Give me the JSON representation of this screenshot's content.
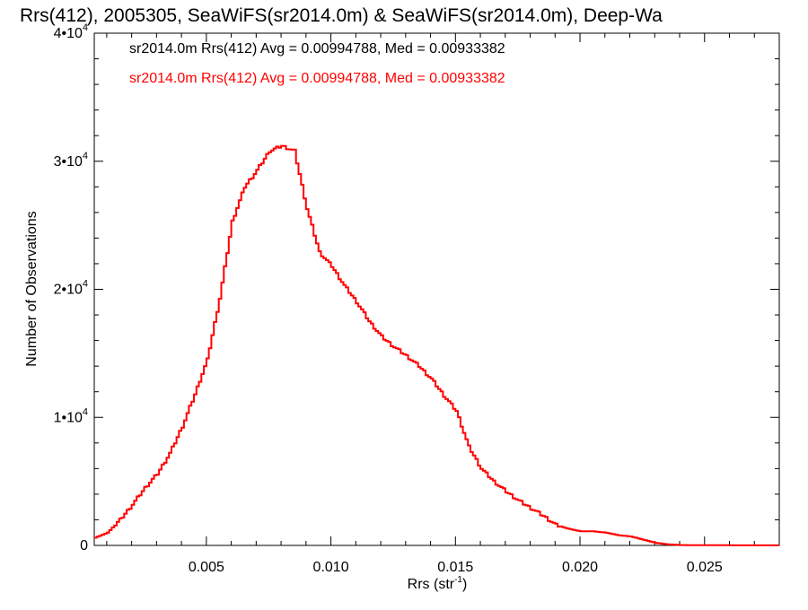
{
  "chart_data": {
    "type": "line",
    "title": "Rrs(412), 2005305, SeaWiFS(sr2014.0m) & SeaWiFS(sr2014.0m), Deep-Wa",
    "xlabel": "Rrs (str",
    "xlabel_sup": "-1",
    "xlabel_close": ")",
    "ylabel": "Number of Observations",
    "xlim": [
      0.0005,
      0.028
    ],
    "ylim": [
      0,
      40000
    ],
    "x_ticks": [
      {
        "value": 0.005,
        "label": "0.005"
      },
      {
        "value": 0.01,
        "label": "0.010"
      },
      {
        "value": 0.015,
        "label": "0.015"
      },
      {
        "value": 0.02,
        "label": "0.020"
      },
      {
        "value": 0.025,
        "label": "0.025"
      }
    ],
    "y_ticks": [
      {
        "value": 0,
        "label": "0",
        "exp": ""
      },
      {
        "value": 10000,
        "label": "1•10",
        "exp": "4"
      },
      {
        "value": 20000,
        "label": "2•10",
        "exp": "4"
      },
      {
        "value": 30000,
        "label": "3•10",
        "exp": "4"
      },
      {
        "value": 40000,
        "label": "4•10",
        "exp": "4"
      }
    ],
    "annotations": [
      {
        "text": "sr2014.0m Rrs(412) Avg = 0.00994788, Med = 0.00933382",
        "color": "#000000"
      },
      {
        "text": "sr2014.0m Rrs(412) Avg = 0.00994788, Med = 0.00933382",
        "color": "#ff0000"
      }
    ],
    "series": [
      {
        "color": "#ff0000",
        "step": true,
        "x": [
          0.0005,
          0.001,
          0.0015,
          0.002,
          0.0025,
          0.003,
          0.0035,
          0.004,
          0.0045,
          0.005,
          0.0055,
          0.006,
          0.0065,
          0.007,
          0.0075,
          0.008,
          0.0085,
          0.009,
          0.0095,
          0.01,
          0.0105,
          0.011,
          0.0115,
          0.012,
          0.0125,
          0.013,
          0.0135,
          0.014,
          0.0145,
          0.015,
          0.0155,
          0.016,
          0.0165,
          0.017,
          0.0175,
          0.018,
          0.0185,
          0.019,
          0.0195,
          0.02,
          0.0205,
          0.021,
          0.0215,
          0.022,
          0.0225,
          0.023,
          0.0235,
          0.024,
          0.0245,
          0.025,
          0.026,
          0.027,
          0.028
        ],
        "y": [
          600,
          1000,
          2000,
          3200,
          4500,
          5600,
          7200,
          9300,
          11800,
          14500,
          19300,
          25300,
          28000,
          29300,
          30800,
          31200,
          30800,
          26300,
          22900,
          21800,
          20300,
          19000,
          17500,
          16300,
          15500,
          14800,
          14000,
          13000,
          11700,
          10500,
          7700,
          6000,
          5000,
          4200,
          3500,
          2900,
          2300,
          1600,
          1300,
          1100,
          1100,
          1000,
          800,
          700,
          450,
          200,
          80,
          30,
          20,
          20,
          10,
          10,
          10
        ]
      }
    ]
  }
}
